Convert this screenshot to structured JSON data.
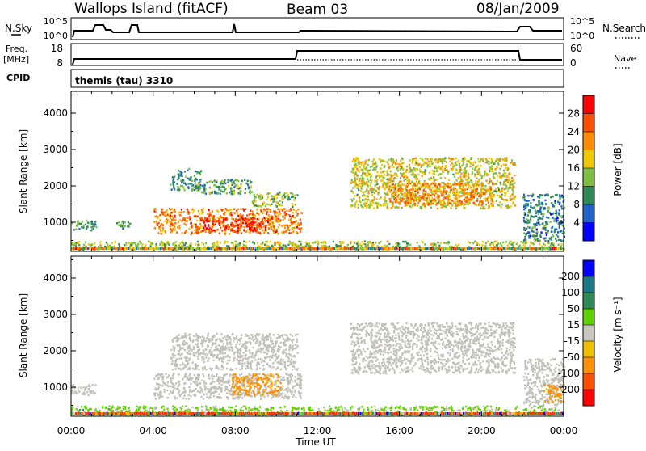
{
  "header": {
    "station": "Wallops Island (fitACF)",
    "beam": "Beam 03",
    "date": "08/Jan/2009"
  },
  "top_panels": {
    "nsky": {
      "label": "N.Sky",
      "yticks": [
        "10^5",
        "10^0"
      ]
    },
    "nsearch": {
      "label": "N.Search",
      "yticks": [
        "10^5",
        "10^0"
      ]
    },
    "freq": {
      "label_line1": "Freq.",
      "label_line2": "[MHz]",
      "yticks": [
        "18",
        "8"
      ]
    },
    "nave": {
      "label": "Nave",
      "yticks": [
        "60",
        "0"
      ]
    },
    "cpid": {
      "label": "CPID",
      "value": "themis (tau) 3310"
    }
  },
  "colors": {
    "power_scale": [
      "#0000ff",
      "#1e64c8",
      "#2e8b57",
      "#7fbf3f",
      "#f0c800",
      "#ff8c00",
      "#ff5000",
      "#ff0000"
    ],
    "velocity_scale": [
      "#0000ff",
      "#1a7a8a",
      "#2e8b57",
      "#60d000",
      "#c8c8c0",
      "#f0c000",
      "#ff9000",
      "#ff5000",
      "#ff0000"
    ],
    "ground_scatter": "#c0c0b8"
  },
  "chart_data": [
    {
      "type": "heatmap",
      "name": "power",
      "xlabel": "",
      "ylabel": "Slant Range [km]",
      "xlim": [
        "00:00",
        "24:00"
      ],
      "ylim": [
        200,
        4600
      ],
      "yticks": [
        "1000",
        "2000",
        "3000",
        "4000"
      ],
      "colorbar": {
        "label": "Power [dB]",
        "ticks": [
          "28",
          "24",
          "20",
          "16",
          "12",
          "8",
          "4"
        ],
        "range": [
          0,
          30
        ]
      },
      "regions": [
        {
          "t_start": 0.0,
          "t_end": 1.2,
          "range_lo": 800,
          "range_hi": 1100,
          "value": 10
        },
        {
          "t_start": 2.2,
          "t_end": 3.0,
          "range_lo": 850,
          "range_hi": 1050,
          "value": 9
        },
        {
          "t_start": 4.0,
          "t_end": 11.2,
          "range_lo": 700,
          "range_hi": 1400,
          "value": 22
        },
        {
          "t_start": 6.3,
          "t_end": 9.6,
          "range_lo": 780,
          "range_hi": 1150,
          "value": 27
        },
        {
          "t_start": 4.8,
          "t_end": 6.3,
          "range_lo": 1900,
          "range_hi": 2500,
          "value": 9
        },
        {
          "t_start": 6.0,
          "t_end": 8.8,
          "range_lo": 1800,
          "range_hi": 2200,
          "value": 11
        },
        {
          "t_start": 8.8,
          "t_end": 11.0,
          "range_lo": 1450,
          "range_hi": 1850,
          "value": 13
        },
        {
          "t_start": 13.6,
          "t_end": 21.6,
          "range_lo": 1400,
          "range_hi": 2800,
          "value": 16
        },
        {
          "t_start": 15.5,
          "t_end": 20.5,
          "range_lo": 1500,
          "range_hi": 2100,
          "value": 21
        },
        {
          "t_start": 22.0,
          "t_end": 24.0,
          "range_lo": 500,
          "range_hi": 1800,
          "value": 8
        },
        {
          "t_start": 0.0,
          "t_end": 24.0,
          "range_lo": 250,
          "range_hi": 500,
          "value": 14
        }
      ]
    },
    {
      "type": "heatmap",
      "name": "velocity",
      "xlabel": "Time UT",
      "ylabel": "Slant Range [km]",
      "xlim": [
        "00:00",
        "24:00"
      ],
      "ylim": [
        200,
        4600
      ],
      "xticks": [
        "00:00",
        "04:00",
        "08:00",
        "12:00",
        "16:00",
        "20:00",
        "00:00"
      ],
      "yticks": [
        "1000",
        "2000",
        "3000",
        "4000"
      ],
      "colorbar": {
        "label": "Velocity [m s⁻¹]",
        "ticks": [
          "200",
          "100",
          "50",
          "15",
          "-15",
          "-50",
          "-100",
          "-200"
        ]
      },
      "regions": [
        {
          "t_start": 0.0,
          "t_end": 1.2,
          "range_lo": 800,
          "range_hi": 1100,
          "value": 0
        },
        {
          "t_start": 4.0,
          "t_end": 11.2,
          "range_lo": 700,
          "range_hi": 1400,
          "value": 0
        },
        {
          "t_start": 7.8,
          "t_end": 10.2,
          "range_lo": 800,
          "range_hi": 1400,
          "value": -60
        },
        {
          "t_start": 4.8,
          "t_end": 11.0,
          "range_lo": 1500,
          "range_hi": 2500,
          "value": 0
        },
        {
          "t_start": 13.6,
          "t_end": 21.6,
          "range_lo": 1400,
          "range_hi": 2800,
          "value": 0
        },
        {
          "t_start": 22.0,
          "t_end": 24.0,
          "range_lo": 500,
          "range_hi": 1800,
          "value": 0
        },
        {
          "t_start": 23.0,
          "t_end": 24.0,
          "range_lo": 600,
          "range_hi": 1100,
          "value": -60
        },
        {
          "t_start": 0.0,
          "t_end": 2.0,
          "range_lo": 250,
          "range_hi": 500,
          "value": 40
        },
        {
          "t_start": 2.0,
          "t_end": 24.0,
          "range_lo": 250,
          "range_hi": 500,
          "value": 20
        }
      ]
    }
  ]
}
